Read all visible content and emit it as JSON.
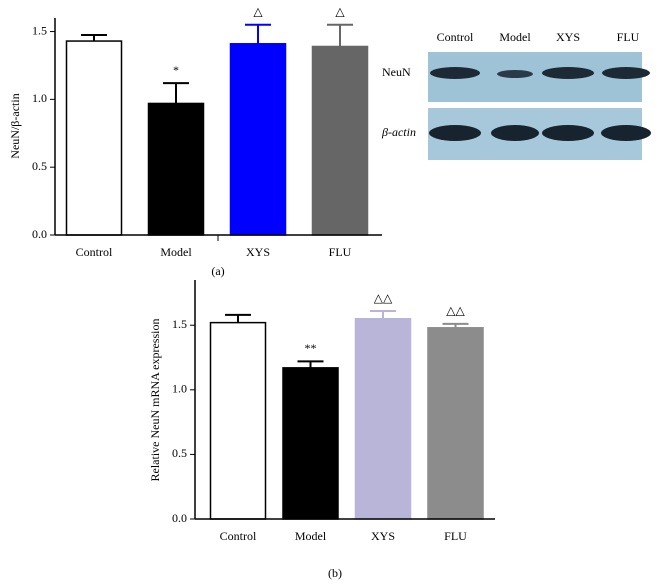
{
  "chart_data": [
    {
      "type": "bar",
      "ylabel": "NeuN/β-actin",
      "panel": "(a)",
      "categories": [
        "Control",
        "Model",
        "XYS",
        "FLU"
      ],
      "values": [
        1.43,
        0.97,
        1.41,
        1.39
      ],
      "errors": [
        0.045,
        0.15,
        0.14,
        0.16
      ],
      "colors": [
        "#ffffff",
        "#000000",
        "#0000ff",
        "#666666"
      ],
      "annotations": [
        null,
        "*",
        "△",
        "△"
      ],
      "ylim": [
        0,
        1.6
      ],
      "yticks": [
        {
          "value": 0,
          "label": "0.0"
        },
        {
          "value": 0.5,
          "label": "0.5"
        },
        {
          "value": 1,
          "label": "1.0"
        },
        {
          "value": 1.5,
          "label": "1.5"
        }
      ],
      "blot": {
        "lanes": [
          "Control",
          "Model",
          "XYS",
          "FLU"
        ],
        "rows": [
          "NeuN",
          "β-actin"
        ]
      }
    },
    {
      "type": "bar",
      "ylabel": "Relative NeuN mRNA expression",
      "panel": "(b)",
      "categories": [
        "Control",
        "Model",
        "XYS",
        "FLU"
      ],
      "values": [
        1.52,
        1.17,
        1.55,
        1.48
      ],
      "errors": [
        0.06,
        0.05,
        0.06,
        0.03
      ],
      "colors": [
        "#ffffff",
        "#000000",
        "#b8b5d9",
        "#8c8c8c"
      ],
      "annotations": [
        null,
        "**",
        "△△",
        "△△"
      ],
      "ylim": [
        0,
        1.85
      ],
      "yticks": [
        {
          "value": 0,
          "label": "0.0"
        },
        {
          "value": 0.5,
          "label": "0.5"
        },
        {
          "value": 1,
          "label": "1.0"
        },
        {
          "value": 1.5,
          "label": "1.5"
        }
      ]
    }
  ]
}
